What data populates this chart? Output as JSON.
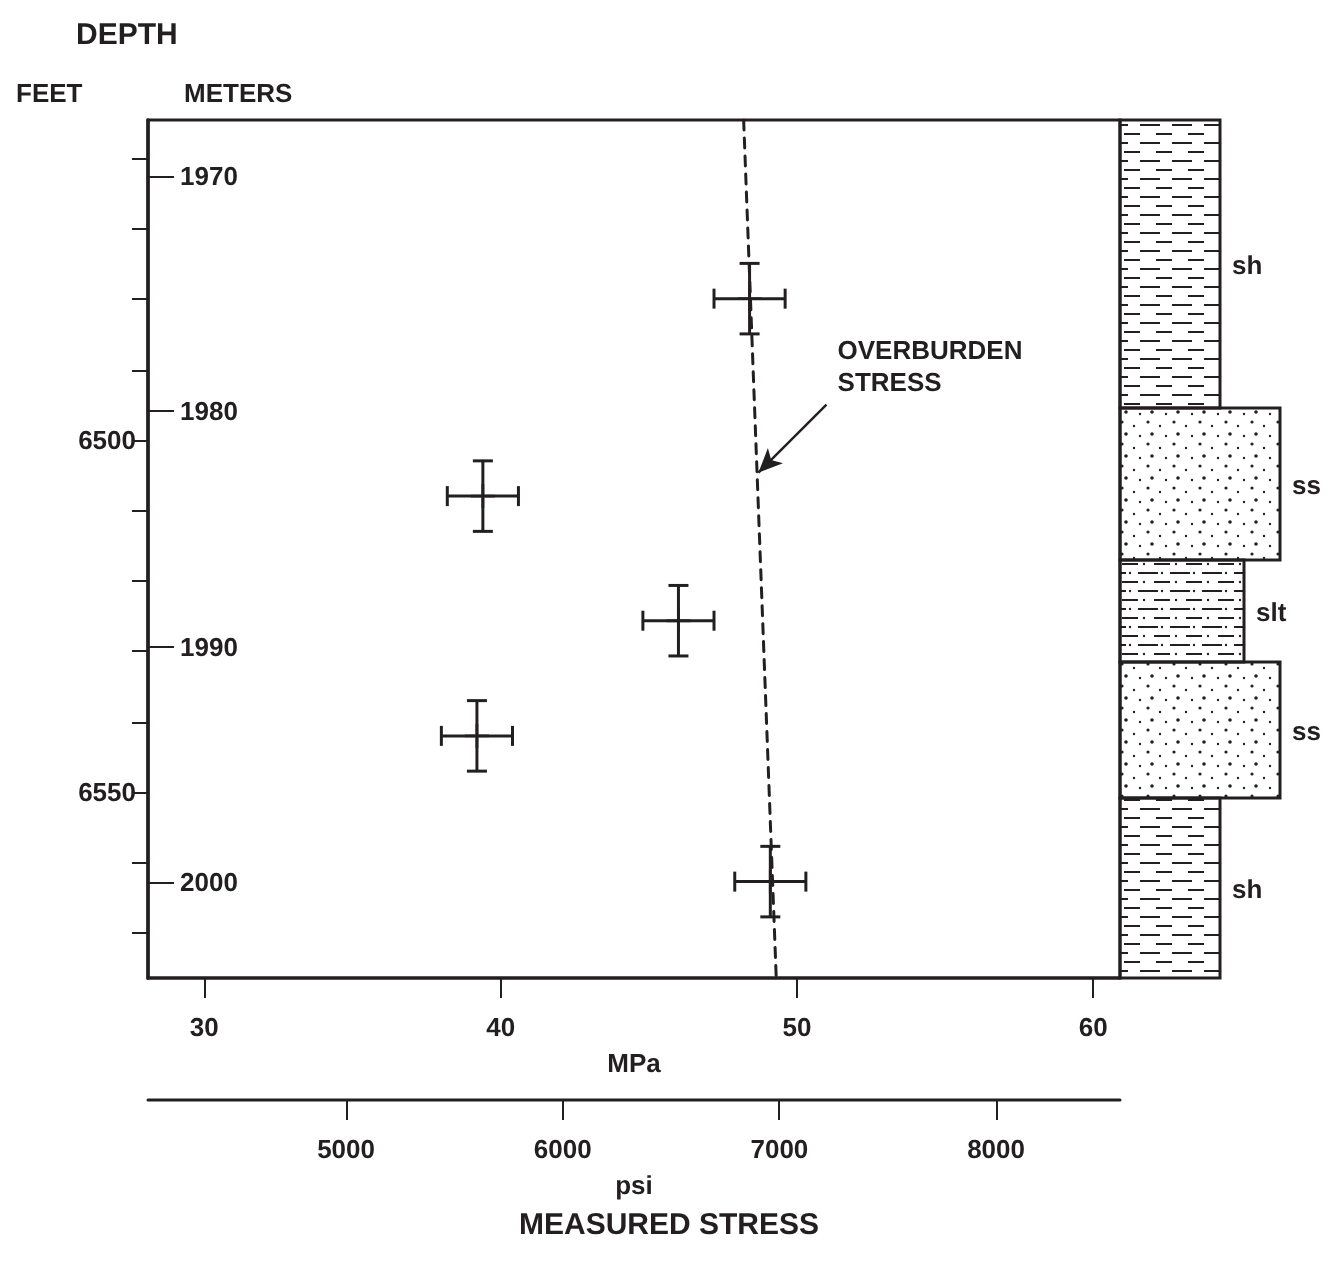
{
  "chart_data": {
    "type": "scatter",
    "title": "DEPTH",
    "xlabel": "MPa",
    "x2label": "psi",
    "ylabel": "METERS",
    "y2label": "FEET",
    "annotations": [
      {
        "text": "OVERBURDEN\nSTRESS",
        "x": 48.7,
        "y": 1982.6
      },
      "MEASURED STRESS",
      "sh",
      "ss",
      "slt",
      "ss",
      "sh"
    ],
    "series": [
      {
        "marker": "cross",
        "color": "#231f20",
        "x": [
          48.4,
          39.4,
          46.0,
          39.2,
          49.1
        ],
        "values": [
          1975.2,
          1983.6,
          1988.9,
          1993.8,
          2000.0
        ],
        "errors": [
          1.5,
          1.5,
          1.5,
          1.5,
          1.5
        ],
        "xerrors": [
          1.2,
          1.2,
          1.2,
          1.2,
          1.2
        ]
      },
      {
        "type": "line",
        "color": "#231f20",
        "line_style": "dashed",
        "x": [
          48.2,
          49.3
        ],
        "values": [
          1967.6,
          2004.1
        ]
      }
    ],
    "xlim": [
      28.1,
      60.9
    ],
    "xticks": [
      30,
      40,
      50,
      60
    ],
    "x2lim": [
      4086,
      8572
    ],
    "x2ticks": [
      5000,
      6000,
      7000,
      8000
    ],
    "ylim": [
      2004.1,
      1967.6
    ],
    "yticks": [
      1970,
      1980,
      1990,
      2000
    ],
    "y2lim": [
      6576.4,
      6454.5
    ],
    "y2ticks": [
      {
        "value": 6460,
        "label": null
      },
      {
        "value": 6470,
        "label": null
      },
      {
        "value": 6480,
        "label": null
      },
      {
        "value": 6490,
        "label": null
      },
      {
        "value": 6500,
        "label": "6500"
      },
      {
        "value": 6510,
        "label": null
      },
      {
        "value": 6520,
        "label": null
      },
      {
        "value": 6530,
        "label": null
      },
      {
        "value": 6540,
        "label": null
      },
      {
        "value": 6550,
        "label": "6550"
      },
      {
        "value": 6560,
        "label": null
      },
      {
        "value": 6570,
        "label": null
      }
    ]
  }
}
